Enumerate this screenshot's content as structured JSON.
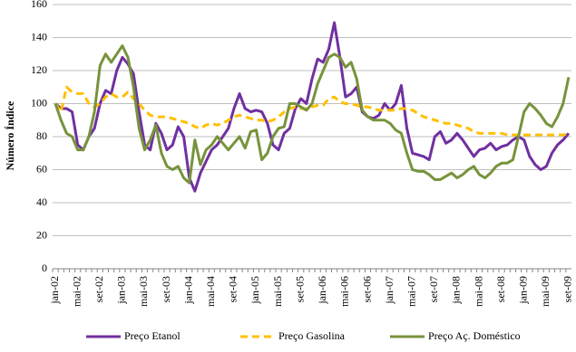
{
  "chart_data": {
    "type": "line",
    "y_label": "Número Índice",
    "categories": [
      "jan-02",
      null,
      null,
      null,
      "mai-02",
      null,
      null,
      null,
      "set-02",
      null,
      null,
      null,
      "jan-03",
      null,
      null,
      null,
      "mai-03",
      null,
      null,
      null,
      "set-03",
      null,
      null,
      null,
      "jan-04",
      null,
      null,
      null,
      "mai-04",
      null,
      null,
      null,
      "set-04",
      null,
      null,
      null,
      "jan-05",
      null,
      null,
      null,
      "mai-05",
      null,
      null,
      null,
      "set-05",
      null,
      null,
      null,
      "jan-06",
      null,
      null,
      null,
      "mai-06",
      null,
      null,
      null,
      "set-06",
      null,
      null,
      null,
      "jan-07",
      null,
      null,
      null,
      "mai-07",
      null,
      null,
      null,
      "set-07",
      null,
      null,
      null,
      "jan-08",
      null,
      null,
      null,
      "mai-08",
      null,
      null,
      null,
      "set-08",
      null,
      null,
      null,
      "jan-09",
      null,
      null,
      null,
      "mai-09",
      null,
      null,
      null,
      "set-09"
    ],
    "series": [
      {
        "name": "Preço Etanol",
        "color": "#7030a0",
        "dashed": false,
        "values": [
          100,
          97,
          97,
          95,
          75,
          72,
          80,
          85,
          100,
          108,
          106,
          120,
          128,
          124,
          118,
          95,
          75,
          72,
          88,
          82,
          72,
          75,
          86,
          80,
          55,
          47,
          58,
          65,
          72,
          75,
          80,
          85,
          97,
          106,
          97,
          95,
          96,
          95,
          88,
          75,
          72,
          82,
          85,
          97,
          103,
          100,
          115,
          127,
          125,
          133,
          149,
          128,
          104,
          106,
          110,
          95,
          92,
          91,
          93,
          100,
          96,
          100,
          111,
          85,
          70,
          69,
          68,
          66,
          80,
          83,
          76,
          78,
          82,
          78,
          73,
          68,
          72,
          73,
          76,
          72,
          74,
          75,
          78,
          80,
          78,
          68,
          63,
          60,
          62,
          70,
          75,
          78,
          82
        ]
      },
      {
        "name": "Preço Gasolina",
        "color": "#ffc000",
        "dashed": true,
        "values": [
          100,
          95,
          110,
          107,
          106,
          106,
          100,
          98,
          100,
          104,
          106,
          104,
          104,
          107,
          103,
          100,
          96,
          93,
          92,
          92,
          92,
          91,
          90,
          89,
          88,
          86,
          85,
          87,
          88,
          87,
          88,
          90,
          92,
          93,
          92,
          91,
          90,
          90,
          89,
          90,
          92,
          95,
          97,
          98,
          97,
          97,
          98,
          99,
          99,
          103,
          104,
          101,
          100,
          100,
          99,
          98,
          98,
          97,
          96,
          96,
          96,
          96,
          97,
          97,
          96,
          94,
          92,
          91,
          90,
          89,
          88,
          88,
          87,
          86,
          85,
          83,
          82,
          82,
          82,
          82,
          82,
          81,
          81,
          81,
          81,
          81,
          81,
          81,
          81,
          81,
          81,
          81,
          82
        ]
      },
      {
        "name": "Preço Aç. Doméstico",
        "color": "#77933c",
        "dashed": false,
        "values": [
          100,
          90,
          82,
          80,
          72,
          72,
          80,
          95,
          123,
          130,
          125,
          130,
          135,
          128,
          110,
          85,
          72,
          78,
          87,
          70,
          62,
          60,
          62,
          55,
          52,
          78,
          63,
          72,
          75,
          80,
          76,
          72,
          76,
          80,
          73,
          83,
          84,
          66,
          70,
          80,
          85,
          86,
          100,
          100,
          98,
          96,
          100,
          112,
          120,
          128,
          130,
          128,
          122,
          125,
          115,
          96,
          92,
          90,
          90,
          90,
          88,
          84,
          82,
          70,
          60,
          59,
          59,
          57,
          54,
          54,
          56,
          58,
          55,
          57,
          60,
          62,
          57,
          55,
          58,
          62,
          64,
          64,
          66,
          80,
          95,
          100,
          97,
          93,
          88,
          86,
          92,
          100,
          116
        ]
      }
    ],
    "ylim": [
      0,
      160
    ],
    "yticks": [
      0,
      20,
      40,
      60,
      80,
      100,
      120,
      140,
      160
    ],
    "grid": true
  }
}
